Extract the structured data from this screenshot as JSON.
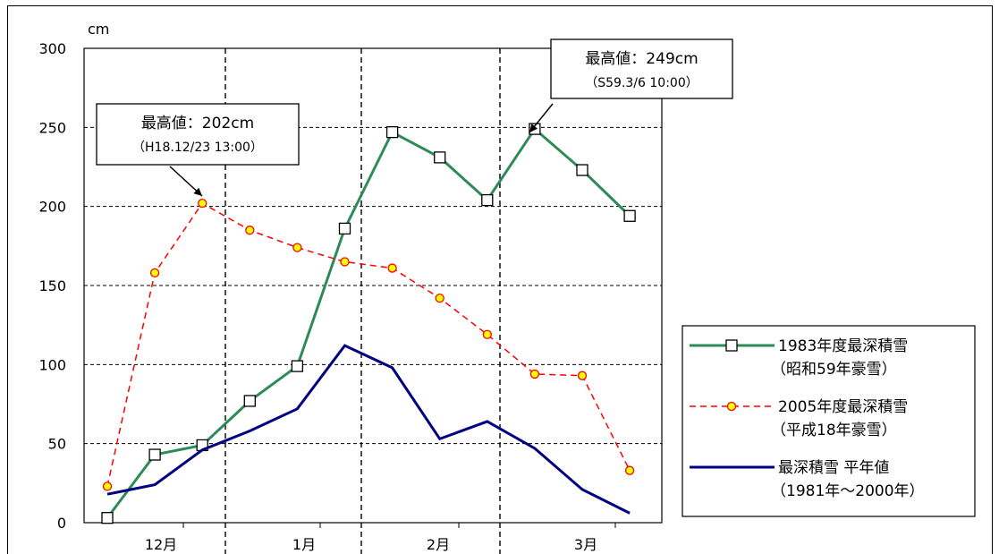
{
  "chart_data": {
    "type": "line",
    "ylabel": "cm",
    "ylim": [
      0,
      300
    ],
    "yticks": [
      "0",
      "50",
      "100",
      "150",
      "200",
      "250",
      "300"
    ],
    "month_labels": [
      "12月",
      "1月",
      "2月",
      "3月"
    ],
    "grid": true,
    "legend_position": "right",
    "x": [
      1,
      2,
      3,
      4,
      5,
      6,
      7,
      8,
      9,
      10,
      11,
      12
    ],
    "series": [
      {
        "name_lines": [
          "1983年度最深積雪",
          "（昭和59年豪雪）"
        ],
        "color": "#2E8B57",
        "marker": "square",
        "values": [
          3,
          43,
          49,
          77,
          99,
          186,
          247,
          231,
          204,
          249,
          223,
          194
        ]
      },
      {
        "name_lines": [
          "2005年度最深積雪",
          "（平成18年豪雪）"
        ],
        "color": "#FF0000",
        "marker": "circle",
        "marker_fill": "#FFFF00",
        "dashed": true,
        "values": [
          23,
          158,
          202,
          185,
          174,
          165,
          161,
          142,
          119,
          94,
          93,
          33
        ]
      },
      {
        "name_lines": [
          "最深積雪 平年値",
          "（1981年～2000年）"
        ],
        "color": "#000080",
        "marker": "none",
        "values": [
          18,
          24,
          46,
          58,
          72,
          112,
          98,
          53,
          64,
          47,
          21,
          6
        ]
      }
    ],
    "annotations": [
      {
        "title": "最高値：202cm",
        "detail": "（H18.12/23 13:00）",
        "series": 1,
        "point": 2
      },
      {
        "title": "最高値：249cm",
        "detail": "（S59.3/6 10:00）",
        "series": 0,
        "point": 9
      }
    ]
  }
}
